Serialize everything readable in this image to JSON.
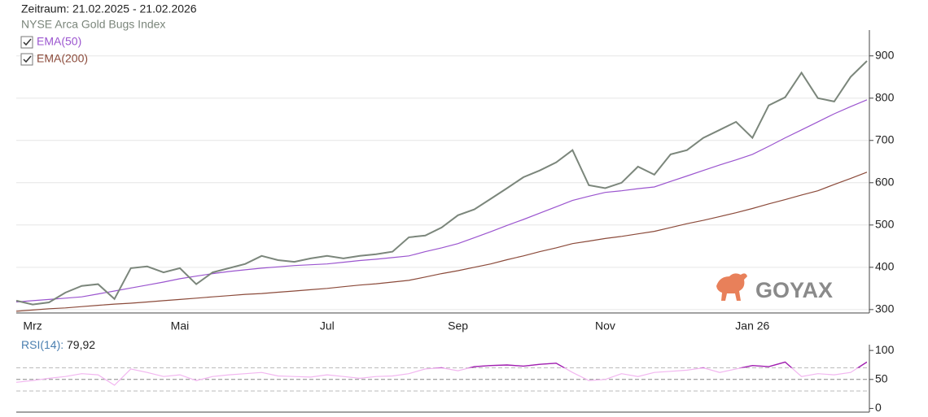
{
  "header": {
    "period": "Zeitraum: 21.02.2025 - 21.02.2026",
    "watermark": "GOYAX"
  },
  "chart_data": [
    {
      "type": "line",
      "categories": [
        null,
        "Mrz",
        null,
        null,
        null,
        null,
        null,
        null,
        null,
        null,
        "Mai",
        null,
        null,
        null,
        null,
        null,
        null,
        null,
        null,
        "Jul",
        null,
        null,
        null,
        null,
        null,
        null,
        null,
        "Sep",
        null,
        null,
        null,
        null,
        null,
        null,
        null,
        null,
        "Nov",
        null,
        null,
        null,
        null,
        null,
        null,
        null,
        null,
        "Jan 26",
        null,
        null,
        null,
        null,
        null,
        null,
        null
      ],
      "series": [
        {
          "name": "NYSE Arca Gold Bugs Index",
          "color": "#7b867b",
          "values": [
            321,
            312,
            317,
            340,
            356,
            360,
            325,
            398,
            402,
            388,
            398,
            360,
            388,
            398,
            408,
            427,
            417,
            413,
            421,
            427,
            421,
            427,
            431,
            437,
            471,
            475,
            494,
            523,
            537,
            562,
            587,
            613,
            629,
            648,
            677,
            594,
            587,
            600,
            638,
            619,
            667,
            677,
            706,
            725,
            744,
            706,
            783,
            802,
            860,
            800,
            792,
            850,
            888
          ]
        },
        {
          "name": "EMA(50)",
          "color": "#9b55cf",
          "values": [
            318,
            321,
            324,
            327,
            330,
            337,
            344,
            351,
            358,
            365,
            373,
            379,
            385,
            390,
            394,
            398,
            401,
            404,
            406,
            408,
            412,
            416,
            419,
            423,
            427,
            437,
            446,
            456,
            470,
            484,
            499,
            513,
            528,
            543,
            558,
            568,
            577,
            581,
            586,
            590,
            603,
            616,
            629,
            642,
            654,
            667,
            686,
            706,
            725,
            744,
            763,
            780,
            796
          ]
        },
        {
          "name": "EMA(200)",
          "color": "#8b4a3a",
          "values": [
            296,
            299,
            302,
            304,
            307,
            310,
            313,
            315,
            318,
            321,
            324,
            327,
            330,
            333,
            336,
            338,
            341,
            344,
            347,
            350,
            354,
            358,
            361,
            365,
            369,
            377,
            385,
            392,
            400,
            408,
            418,
            427,
            437,
            446,
            456,
            462,
            468,
            473,
            479,
            485,
            494,
            503,
            511,
            520,
            529,
            539,
            550,
            560,
            571,
            581,
            596,
            610,
            625
          ]
        }
      ],
      "ylim": [
        292,
        961
      ],
      "yticks": [
        300,
        400,
        500,
        600,
        700,
        800,
        900
      ],
      "grid": true
    },
    {
      "type": "line",
      "series": [
        {
          "name": "RSI(14):",
          "color": "#f2b6f0",
          "color_high": "#a020b0",
          "values": [
            45,
            48,
            52,
            55,
            60,
            58,
            40,
            68,
            62,
            55,
            58,
            48,
            55,
            58,
            60,
            62,
            56,
            55,
            54,
            58,
            55,
            52,
            55,
            56,
            60,
            68,
            70,
            65,
            72,
            74,
            75,
            73,
            76,
            78,
            62,
            48,
            50,
            60,
            55,
            62,
            64,
            66,
            70,
            62,
            68,
            74,
            72,
            80,
            55,
            60,
            58,
            62,
            79.92
          ]
        }
      ],
      "current": {
        "value": 79.92,
        "label": "79,92"
      },
      "hlines": [
        30,
        50,
        70
      ],
      "ylim": [
        -5,
        110
      ],
      "yticks": [
        0,
        50,
        100
      ]
    }
  ]
}
